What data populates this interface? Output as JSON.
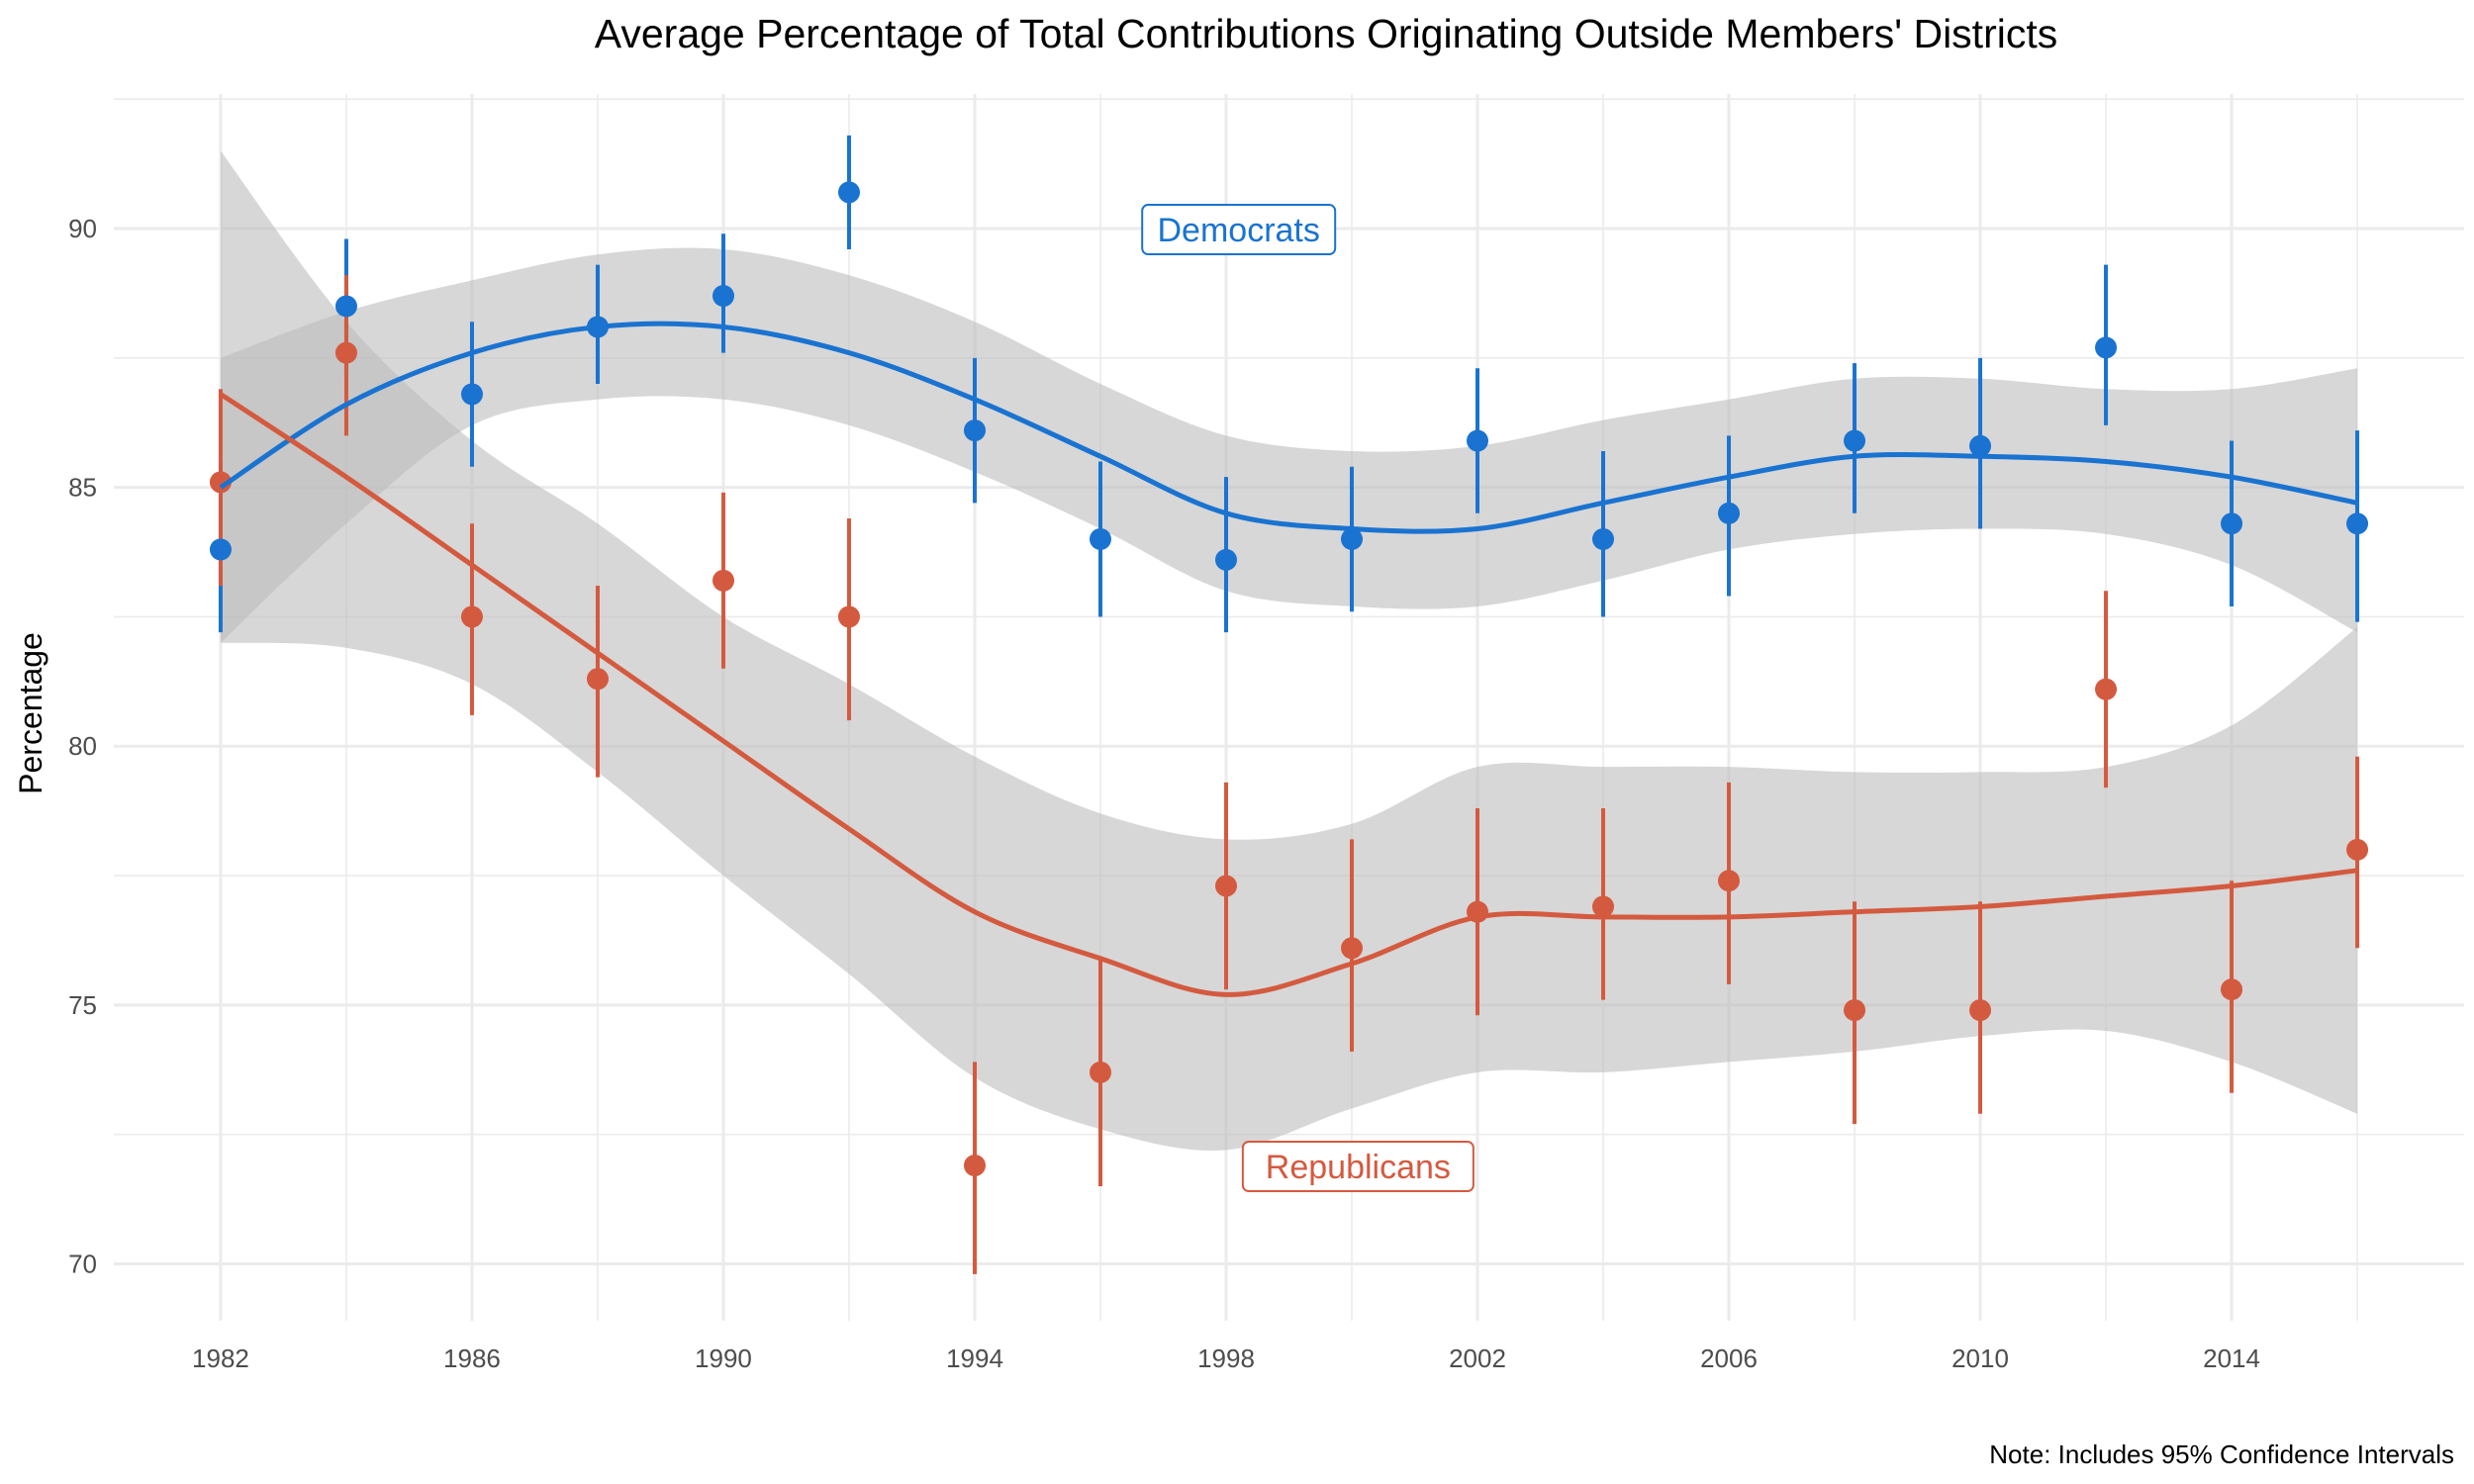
{
  "chart_data": {
    "type": "scatter",
    "title": "Average Percentage of Total Contributions Originating Outside Members' Districts",
    "xlabel": "",
    "ylabel": "Percentage",
    "note": "Note: Includes 95% Confidence Intervals",
    "xlim": [
      1980.3,
      2017.7
    ],
    "ylim": [
      68.9,
      92.6
    ],
    "x_ticks": [
      1982,
      1986,
      1990,
      1994,
      1998,
      2002,
      2006,
      2010,
      2014
    ],
    "y_ticks": [
      70,
      75,
      80,
      85,
      90
    ],
    "grid": true,
    "colors": {
      "democrats": "#1a73d0",
      "republicans": "#d45a3f",
      "band": "#bdbdbd"
    },
    "x": [
      1982,
      1984,
      1986,
      1988,
      1990,
      1992,
      1994,
      1996,
      1998,
      2000,
      2002,
      2004,
      2006,
      2008,
      2010,
      2012,
      2014,
      2016
    ],
    "series": [
      {
        "name": "Democrats",
        "label": "Democrats",
        "label_at": [
          1998.2,
          90.0
        ],
        "values": [
          83.8,
          88.5,
          86.8,
          88.1,
          88.7,
          90.7,
          86.1,
          84.0,
          83.6,
          84.0,
          85.9,
          84.0,
          84.5,
          85.9,
          85.8,
          87.7,
          84.3,
          84.3
        ],
        "ci_low": [
          82.2,
          87.1,
          85.4,
          87.0,
          87.6,
          89.6,
          84.7,
          82.5,
          82.2,
          82.6,
          84.5,
          82.5,
          82.9,
          84.5,
          84.2,
          86.2,
          82.7,
          82.4
        ],
        "ci_high": [
          85.5,
          89.8,
          88.2,
          89.3,
          89.9,
          91.8,
          87.5,
          85.5,
          85.2,
          85.4,
          87.3,
          85.7,
          86.0,
          87.4,
          87.5,
          89.3,
          85.9,
          86.1
        ],
        "smooth": [
          85.0,
          86.6,
          87.6,
          88.1,
          88.1,
          87.6,
          86.7,
          85.6,
          84.5,
          84.2,
          84.2,
          84.7,
          85.2,
          85.6,
          85.6,
          85.5,
          85.2,
          84.7
        ],
        "smooth_low": [
          82.0,
          84.3,
          86.2,
          86.7,
          86.7,
          86.2,
          85.3,
          84.2,
          83.0,
          82.7,
          82.7,
          83.2,
          83.8,
          84.1,
          84.2,
          84.1,
          83.5,
          82.2
        ],
        "smooth_high": [
          87.5,
          88.4,
          89.0,
          89.5,
          89.6,
          89.1,
          88.2,
          87.0,
          86.0,
          85.7,
          85.8,
          86.3,
          86.7,
          87.1,
          87.1,
          86.9,
          86.9,
          87.3
        ]
      },
      {
        "name": "Republicans",
        "label": "Republicans",
        "label_at": [
          2000.1,
          71.9
        ],
        "values": [
          85.1,
          87.6,
          82.5,
          81.3,
          83.2,
          82.5,
          71.9,
          73.7,
          77.3,
          76.1,
          76.8,
          76.9,
          77.4,
          74.9,
          74.9,
          81.1,
          75.3,
          78.0
        ],
        "ci_low": [
          83.1,
          86.0,
          80.6,
          79.4,
          81.5,
          80.5,
          69.8,
          71.5,
          75.3,
          74.1,
          74.8,
          75.1,
          75.4,
          72.7,
          72.9,
          79.2,
          73.3,
          76.1
        ],
        "ci_high": [
          86.9,
          89.1,
          84.3,
          83.1,
          84.9,
          84.4,
          73.9,
          75.9,
          79.3,
          78.2,
          78.8,
          78.8,
          79.3,
          77.0,
          77.0,
          83.0,
          77.4,
          79.8
        ],
        "smooth": [
          86.8,
          85.2,
          83.5,
          81.8,
          80.1,
          78.4,
          76.8,
          75.9,
          75.2,
          75.8,
          76.7,
          76.7,
          76.7,
          76.8,
          76.9,
          77.1,
          77.3,
          77.6
        ],
        "smooth_low": [
          82.0,
          81.9,
          81.2,
          79.5,
          77.5,
          75.6,
          73.6,
          72.6,
          72.2,
          73.0,
          73.7,
          73.7,
          73.9,
          74.1,
          74.4,
          74.5,
          73.9,
          72.9
        ],
        "smooth_high": [
          91.5,
          88.2,
          85.9,
          84.3,
          82.5,
          81.2,
          79.8,
          78.7,
          78.2,
          78.5,
          79.6,
          79.6,
          79.6,
          79.5,
          79.5,
          79.6,
          80.4,
          82.3
        ]
      }
    ]
  }
}
